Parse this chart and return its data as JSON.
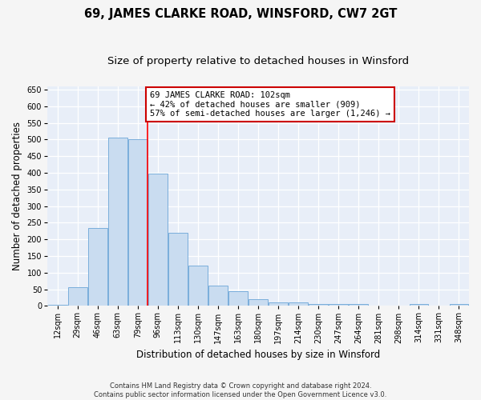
{
  "title": "69, JAMES CLARKE ROAD, WINSFORD, CW7 2GT",
  "subtitle": "Size of property relative to detached houses in Winsford",
  "xlabel": "Distribution of detached houses by size in Winsford",
  "ylabel": "Number of detached properties",
  "categories": [
    "12sqm",
    "29sqm",
    "46sqm",
    "63sqm",
    "79sqm",
    "96sqm",
    "113sqm",
    "130sqm",
    "147sqm",
    "163sqm",
    "180sqm",
    "197sqm",
    "214sqm",
    "230sqm",
    "247sqm",
    "264sqm",
    "281sqm",
    "298sqm",
    "314sqm",
    "331sqm",
    "348sqm"
  ],
  "values": [
    3,
    55,
    235,
    505,
    500,
    398,
    220,
    120,
    60,
    45,
    20,
    10,
    10,
    5,
    5,
    5,
    0,
    0,
    5,
    0,
    5
  ],
  "bar_color": "#c9dcf0",
  "bar_edge_color": "#7aaedb",
  "red_line_index": 4.5,
  "annotation_text": "69 JAMES CLARKE ROAD: 102sqm\n← 42% of detached houses are smaller (909)\n57% of semi-detached houses are larger (1,246) →",
  "annotation_box_color": "#ffffff",
  "annotation_box_edge_color": "#cc0000",
  "footer_text": "Contains HM Land Registry data © Crown copyright and database right 2024.\nContains public sector information licensed under the Open Government Licence v3.0.",
  "ylim": [
    0,
    660
  ],
  "yticks": [
    0,
    50,
    100,
    150,
    200,
    250,
    300,
    350,
    400,
    450,
    500,
    550,
    600,
    650
  ],
  "plot_bg_color": "#e8eef8",
  "grid_color": "#ffffff",
  "fig_bg_color": "#f5f5f5",
  "title_fontsize": 10.5,
  "subtitle_fontsize": 9.5,
  "tick_fontsize": 7,
  "ylabel_fontsize": 8.5,
  "xlabel_fontsize": 8.5,
  "annotation_fontsize": 7.5,
  "footer_fontsize": 6.0
}
